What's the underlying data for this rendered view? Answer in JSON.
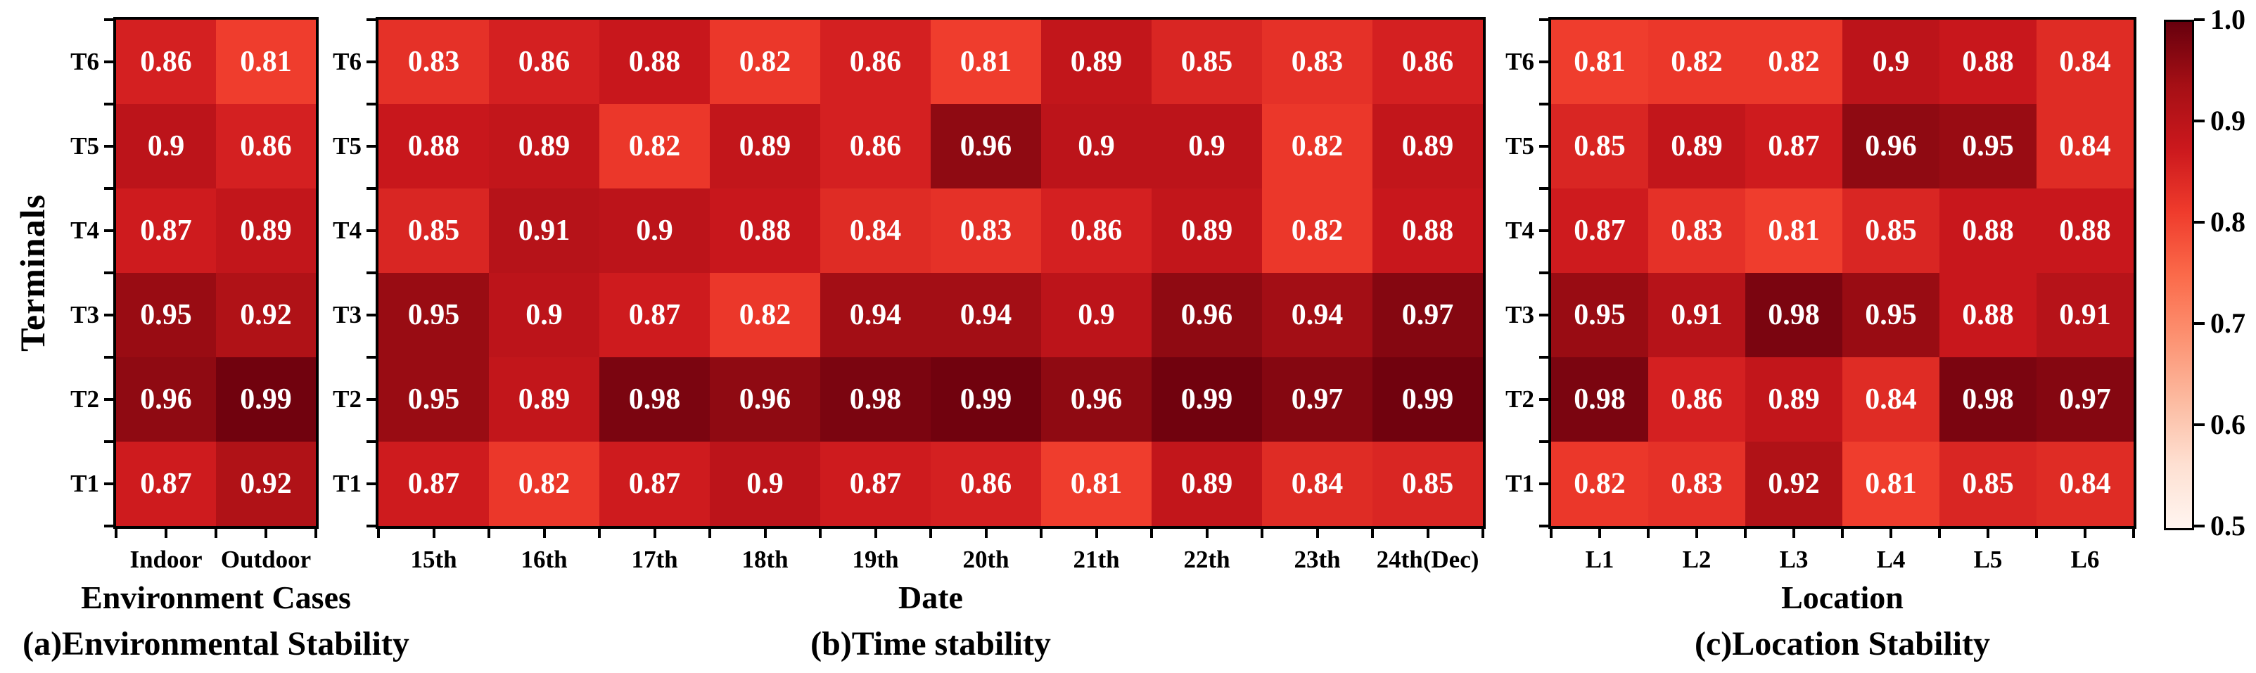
{
  "figure": {
    "y_axis_label": "Terminals",
    "background": "#ffffff",
    "cell_text_color": "#ffffff",
    "colormap": {
      "name": "Reds",
      "vmin": 0.5,
      "vmax": 1.0,
      "anchors": [
        "#fff5f0",
        "#fee0d2",
        "#fcbba1",
        "#fc9272",
        "#fb6a4a",
        "#ef3b2c",
        "#cb181d",
        "#a50f15",
        "#67000d"
      ]
    },
    "colorbar": {
      "tick_labels": [
        "1.0",
        "0.9",
        "0.8",
        "0.7",
        "0.6",
        "0.5"
      ]
    }
  },
  "chart_data": [
    {
      "type": "heatmap",
      "title": "(a)Environmental Stability",
      "xlabel": "Environment Cases",
      "ylabel": "Terminals",
      "x_categories": [
        "Indoor",
        "Outdoor"
      ],
      "y_categories": [
        "T6",
        "T5",
        "T4",
        "T3",
        "T2",
        "T1"
      ],
      "values": [
        [
          0.86,
          0.81
        ],
        [
          0.9,
          0.86
        ],
        [
          0.87,
          0.89
        ],
        [
          0.95,
          0.92
        ],
        [
          0.96,
          0.99
        ],
        [
          0.87,
          0.92
        ]
      ],
      "vmin": 0.5,
      "vmax": 1.0,
      "colormap": "Reds",
      "grid": false,
      "legend_position": "none"
    },
    {
      "type": "heatmap",
      "title": "(b)Time stability",
      "xlabel": "Date",
      "ylabel": "Terminals",
      "x_categories": [
        "15th",
        "16th",
        "17th",
        "18th",
        "19th",
        "20th",
        "21th",
        "22th",
        "23th",
        "24th(Dec)"
      ],
      "y_categories": [
        "T6",
        "T5",
        "T4",
        "T3",
        "T2",
        "T1"
      ],
      "values": [
        [
          0.83,
          0.86,
          0.88,
          0.82,
          0.86,
          0.81,
          0.89,
          0.85,
          0.83,
          0.86
        ],
        [
          0.88,
          0.89,
          0.82,
          0.89,
          0.86,
          0.96,
          0.9,
          0.9,
          0.82,
          0.89
        ],
        [
          0.85,
          0.91,
          0.9,
          0.88,
          0.84,
          0.83,
          0.86,
          0.89,
          0.82,
          0.88
        ],
        [
          0.95,
          0.9,
          0.87,
          0.82,
          0.94,
          0.94,
          0.9,
          0.96,
          0.94,
          0.97
        ],
        [
          0.95,
          0.89,
          0.98,
          0.96,
          0.98,
          0.99,
          0.96,
          0.99,
          0.97,
          0.99
        ],
        [
          0.87,
          0.82,
          0.87,
          0.9,
          0.87,
          0.86,
          0.81,
          0.89,
          0.84,
          0.85
        ]
      ],
      "vmin": 0.5,
      "vmax": 1.0,
      "colormap": "Reds",
      "grid": false,
      "legend_position": "right-colorbar"
    },
    {
      "type": "heatmap",
      "title": "(c)Location Stability",
      "xlabel": "Location",
      "ylabel": "Terminals",
      "x_categories": [
        "L1",
        "L2",
        "L3",
        "L4",
        "L5",
        "L6"
      ],
      "y_categories": [
        "T6",
        "T5",
        "T4",
        "T3",
        "T2",
        "T1"
      ],
      "values": [
        [
          0.81,
          0.82,
          0.82,
          0.9,
          0.88,
          0.84
        ],
        [
          0.85,
          0.89,
          0.87,
          0.96,
          0.95,
          0.84
        ],
        [
          0.87,
          0.83,
          0.81,
          0.85,
          0.88,
          0.88
        ],
        [
          0.95,
          0.91,
          0.98,
          0.95,
          0.88,
          0.91
        ],
        [
          0.98,
          0.86,
          0.89,
          0.84,
          0.98,
          0.97
        ],
        [
          0.82,
          0.83,
          0.92,
          0.81,
          0.85,
          0.84
        ]
      ],
      "vmin": 0.5,
      "vmax": 1.0,
      "colormap": "Reds",
      "grid": false,
      "legend_position": "none"
    }
  ]
}
